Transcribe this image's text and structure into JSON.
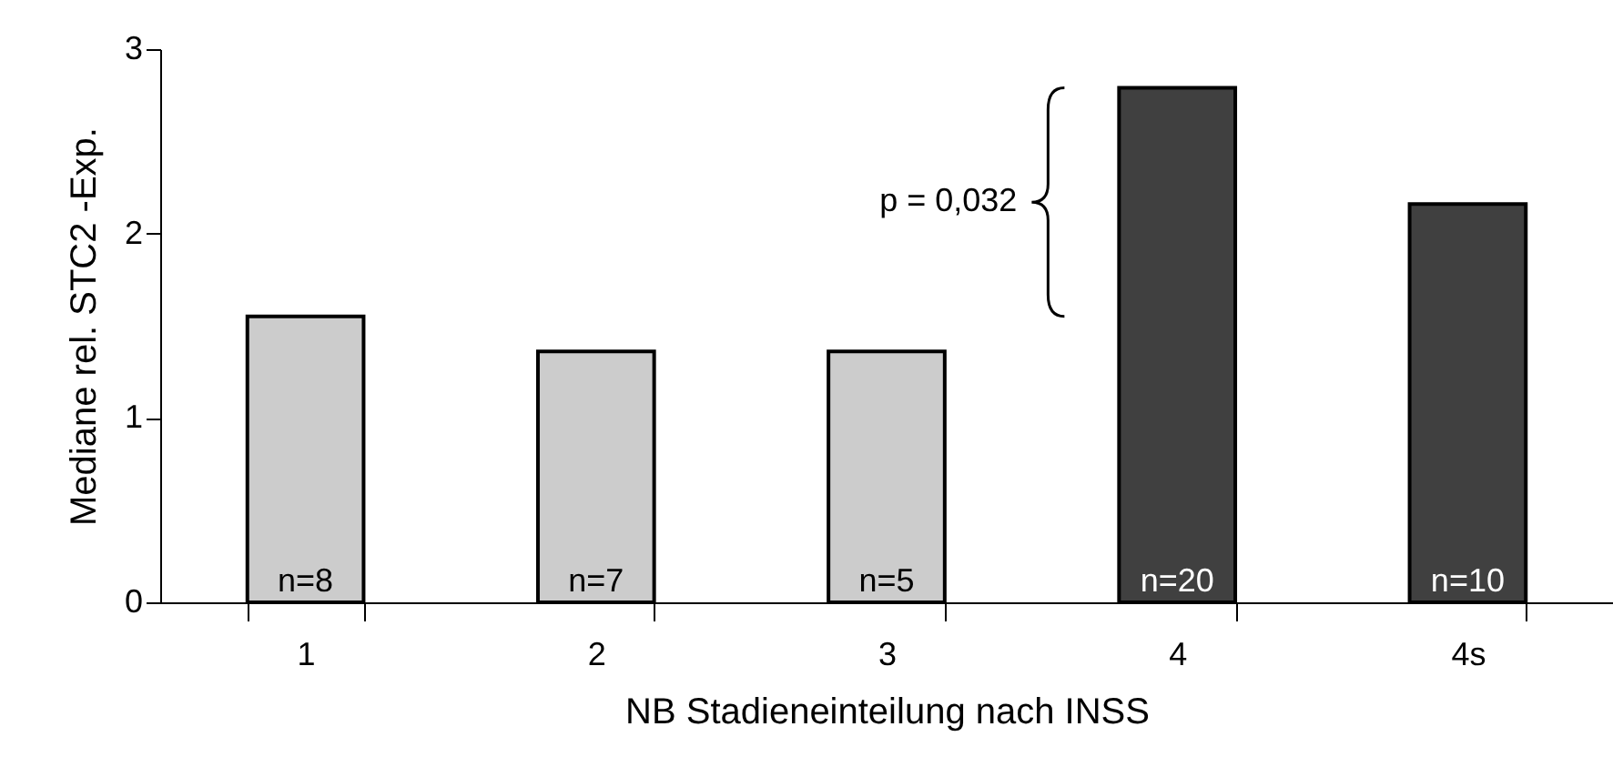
{
  "chart_data": {
    "type": "bar",
    "xlabel": "NB Stadieneinteilung nach INSS",
    "ylabel": "Mediane rel. STC2 -Exp.",
    "categories": [
      "1",
      "2",
      "3",
      "4",
      "4s"
    ],
    "values": [
      1.55,
      1.36,
      1.36,
      2.79,
      2.16
    ],
    "colors": [
      "#cccccc",
      "#cccccc",
      "#cccccc",
      "#404040",
      "#404040"
    ],
    "ylim": [
      0,
      3
    ],
    "yticks": [
      0,
      1,
      2,
      3
    ],
    "grid": false,
    "annotations": [
      {
        "text": "n=8",
        "x": "1",
        "y": 0
      },
      {
        "text": "n=7",
        "x": "2",
        "y": 0
      },
      {
        "text": "n=5",
        "x": "3",
        "y": 0
      },
      {
        "text": "n=20",
        "x": "4",
        "y": 0
      },
      {
        "text": "n=10",
        "x": "4s",
        "y": 0
      },
      "p = 0,032"
    ]
  }
}
